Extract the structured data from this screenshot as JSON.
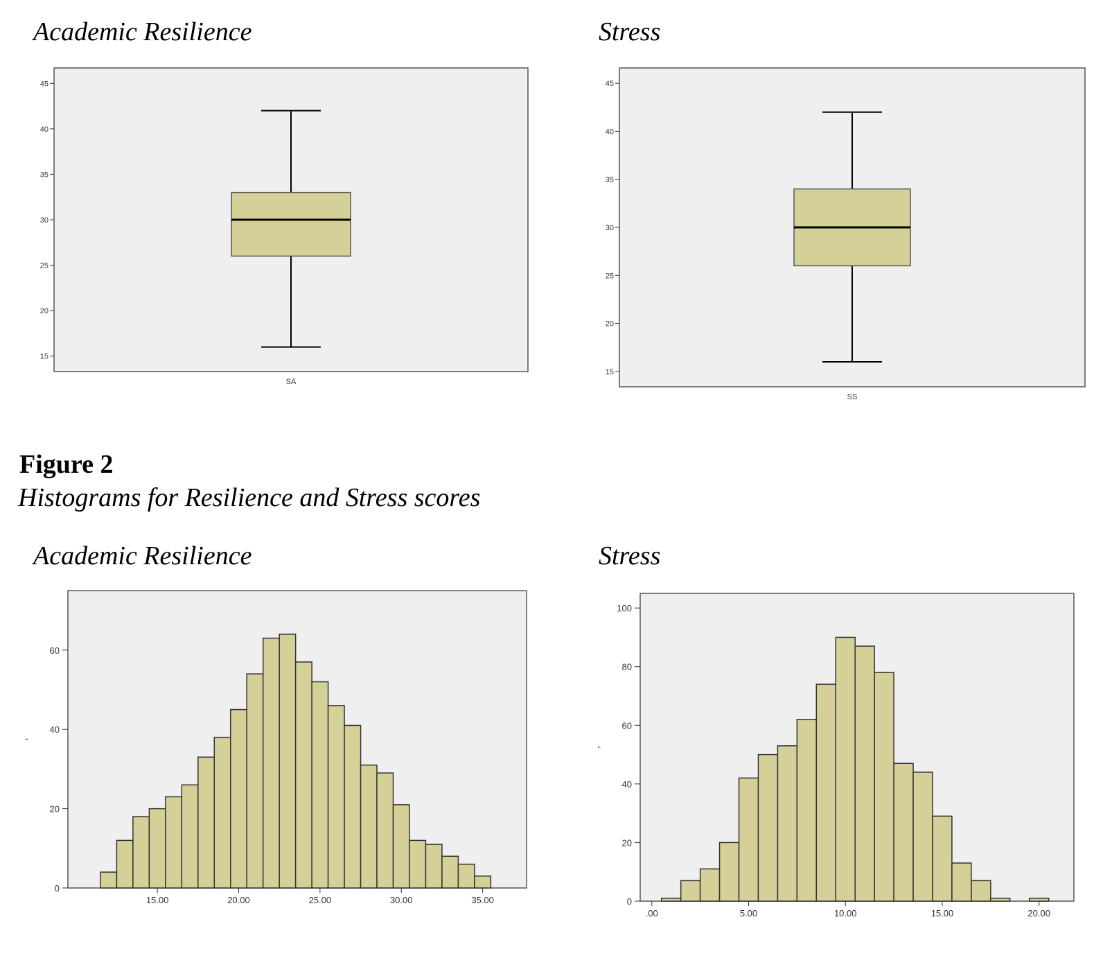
{
  "figure": {
    "label": "Figure 2",
    "caption": "Histograms for Resilience and Stress scores"
  },
  "colors": {
    "plot_background": "#efefef",
    "fill": "#d4d098",
    "stroke": "#3a3a3a",
    "median_line": "#000000"
  },
  "chart_data": [
    {
      "type": "boxplot",
      "title": "Academic Resilience",
      "xlabel": "SA",
      "ylim": [
        13.3,
        46.7
      ],
      "yticks": [
        15,
        20,
        25,
        30,
        35,
        40,
        45
      ],
      "grid": false,
      "box": {
        "whisker_low": 16,
        "q1": 26,
        "median": 30,
        "q3": 33,
        "whisker_high": 42
      }
    },
    {
      "type": "boxplot",
      "title": "Stress",
      "xlabel": "SS",
      "ylim": [
        13.4,
        46.6
      ],
      "yticks": [
        15,
        20,
        25,
        30,
        35,
        40,
        45
      ],
      "grid": false,
      "box": {
        "whisker_low": 16,
        "q1": 26,
        "median": 30,
        "q3": 34,
        "whisker_high": 42
      }
    },
    {
      "type": "bar",
      "subtype": "histogram",
      "title": "Academic Resilience",
      "ylabel_glyph": "’",
      "grid": false,
      "xlim": [
        9.5,
        37.7
      ],
      "ylim": [
        0,
        75
      ],
      "xticks": [
        15,
        20,
        25,
        30,
        35
      ],
      "xtick_labels": [
        "15.00",
        "20.00",
        "25.00",
        "30.00",
        "35.00"
      ],
      "yticks": [
        0,
        20,
        40,
        60
      ],
      "bin_width": 1,
      "x": [
        12,
        13,
        14,
        15,
        16,
        17,
        18,
        19,
        20,
        21,
        22,
        23,
        24,
        25,
        26,
        27,
        28,
        29,
        30,
        31,
        32,
        33,
        34,
        35
      ],
      "values": [
        4,
        12,
        18,
        20,
        23,
        26,
        33,
        38,
        45,
        54,
        63,
        64,
        57,
        52,
        46,
        41,
        31,
        29,
        21,
        12,
        11,
        8,
        6,
        3
      ]
    },
    {
      "type": "bar",
      "subtype": "histogram",
      "title": "Stress",
      "ylabel_glyph": "’",
      "grid": false,
      "xlim": [
        -0.6,
        21.8
      ],
      "ylim": [
        0,
        105
      ],
      "xticks": [
        0,
        5,
        10,
        15,
        20
      ],
      "xtick_labels": [
        ".00",
        "5.00",
        "10.00",
        "15.00",
        "20.00"
      ],
      "yticks": [
        0,
        20,
        40,
        60,
        80,
        100
      ],
      "bin_width": 1,
      "x": [
        1,
        2,
        3,
        4,
        5,
        6,
        7,
        8,
        9,
        10,
        11,
        12,
        13,
        14,
        15,
        16,
        17,
        18,
        19,
        20
      ],
      "values": [
        1,
        7,
        11,
        20,
        42,
        50,
        53,
        62,
        74,
        90,
        87,
        78,
        47,
        44,
        29,
        13,
        7,
        1,
        0,
        1
      ]
    }
  ]
}
